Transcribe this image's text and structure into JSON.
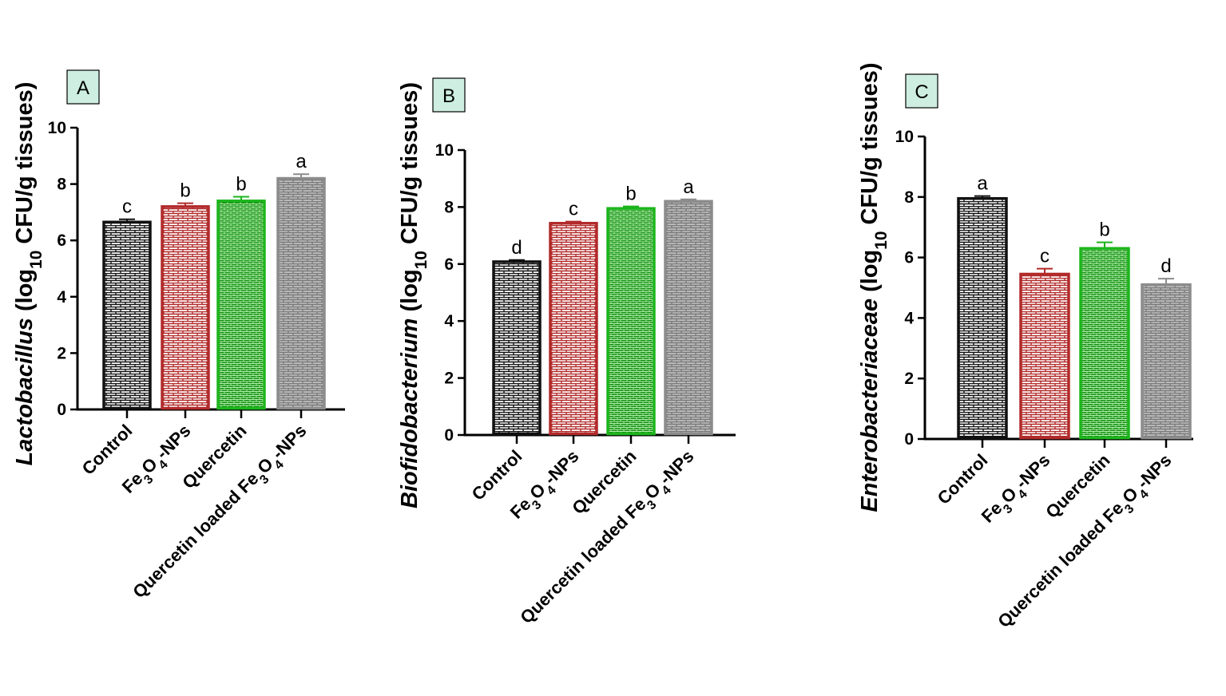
{
  "colors": {
    "control": "#111111",
    "fe3o4": "#b22a2a",
    "quercetin": "#1db51d",
    "loaded": "#8c8c8c",
    "panel_label_bg": "#cdeee0",
    "axis": "#000000"
  },
  "categories": [
    {
      "key": "control",
      "label": "Control"
    },
    {
      "key": "fe3o4",
      "label": "Fe3O4-NPs",
      "label_parts": [
        "Fe",
        "3",
        "O",
        "4",
        "-NPs"
      ]
    },
    {
      "key": "quercetin",
      "label": "Quercetin"
    },
    {
      "key": "loaded",
      "label": "Quercetin loaded Fe3O4-NPs",
      "label_parts": [
        "Quercetin loaded Fe",
        "3",
        "O",
        "4",
        "-NPs"
      ]
    }
  ],
  "chart_data": [
    {
      "type": "bar",
      "panel": "A",
      "organism": "Lactobacillus",
      "ylabel": "Lactobacillus (log10 CFU/g tissues)",
      "ylabel_units": "(log10 CFU/g tissues)",
      "categories": [
        "Control",
        "Fe3O4-NPs",
        "Quercetin",
        "Quercetin loaded Fe3O4-NPs"
      ],
      "values": [
        6.65,
        7.2,
        7.4,
        8.2
      ],
      "errors": [
        0.1,
        0.12,
        0.15,
        0.15
      ],
      "significance": [
        "c",
        "b",
        "b",
        "a"
      ],
      "ylim": [
        0,
        10
      ],
      "yticks": [
        0,
        2,
        4,
        6,
        8,
        10
      ]
    },
    {
      "type": "bar",
      "panel": "B",
      "organism": "Biofidobacterium",
      "ylabel": "Biofidobacterium (log10 CFU/g tissues)",
      "ylabel_units": "(log10 CFU/g tissues)",
      "categories": [
        "Control",
        "Fe3O4-NPs",
        "Quercetin",
        "Quercetin loaded Fe3O4-NPs"
      ],
      "values": [
        6.08,
        7.43,
        7.95,
        8.2
      ],
      "errors": [
        0.06,
        0.06,
        0.07,
        0.07
      ],
      "significance": [
        "d",
        "c",
        "b",
        "a"
      ],
      "ylim": [
        0,
        10
      ],
      "yticks": [
        0,
        2,
        4,
        6,
        8,
        10
      ]
    },
    {
      "type": "bar",
      "panel": "C",
      "organism": "Enterobacteriaceae",
      "ylabel": "Enterobacteriaceae (log10 CFU/g tissues)",
      "ylabel_units": "(log10 CFU/g tissues)",
      "categories": [
        "Control",
        "Fe3O4-NPs",
        "Quercetin",
        "Quercetin loaded Fe3O4-NPs"
      ],
      "values": [
        7.95,
        5.45,
        6.3,
        5.1
      ],
      "errors": [
        0.08,
        0.18,
        0.2,
        0.2
      ],
      "significance": [
        "a",
        "c",
        "b",
        "d"
      ],
      "ylim": [
        0,
        10
      ],
      "yticks": [
        0,
        2,
        4,
        6,
        8,
        10
      ]
    }
  ]
}
